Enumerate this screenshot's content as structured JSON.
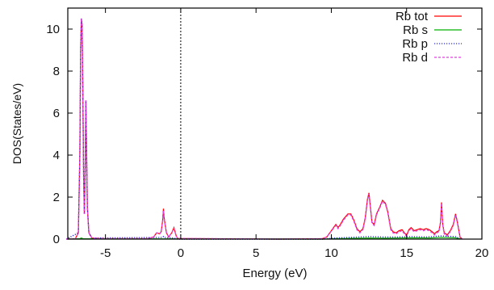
{
  "chart_data": {
    "type": "line",
    "title": "",
    "xlabel": "Energy (eV)",
    "ylabel": "DOS(States/eV)",
    "xlim": [
      -7.5,
      20
    ],
    "ylim": [
      0,
      11
    ],
    "xticks": [
      -5,
      0,
      5,
      10,
      15,
      20
    ],
    "yticks": [
      0,
      2,
      4,
      6,
      8,
      10
    ],
    "grid": false,
    "legend_position": "top-right",
    "fermi_level_line": 0,
    "series": [
      {
        "name": "Rb tot",
        "color": "#ff0000",
        "style": "solid",
        "points": [
          [
            -7.6,
            0
          ],
          [
            -7.0,
            0.02
          ],
          [
            -6.8,
            0.3
          ],
          [
            -6.7,
            4.0
          ],
          [
            -6.65,
            9.0
          ],
          [
            -6.6,
            10.5
          ],
          [
            -6.55,
            10.2
          ],
          [
            -6.5,
            7.0
          ],
          [
            -6.45,
            3.0
          ],
          [
            -6.4,
            1.2
          ],
          [
            -6.35,
            3.0
          ],
          [
            -6.3,
            6.6
          ],
          [
            -6.25,
            4.0
          ],
          [
            -6.2,
            1.5
          ],
          [
            -6.1,
            0.3
          ],
          [
            -5.9,
            0.05
          ],
          [
            -5.0,
            0.02
          ],
          [
            -2.2,
            0.02
          ],
          [
            -1.8,
            0.1
          ],
          [
            -1.6,
            0.3
          ],
          [
            -1.4,
            0.25
          ],
          [
            -1.3,
            0.35
          ],
          [
            -1.2,
            0.9
          ],
          [
            -1.15,
            1.45
          ],
          [
            -1.1,
            1.0
          ],
          [
            -0.95,
            0.3
          ],
          [
            -0.8,
            0.1
          ],
          [
            -0.6,
            0.3
          ],
          [
            -0.45,
            0.55
          ],
          [
            -0.3,
            0.15
          ],
          [
            -0.2,
            0.03
          ],
          [
            6.5,
            0.0
          ],
          [
            9.4,
            0.02
          ],
          [
            9.7,
            0.1
          ],
          [
            10.0,
            0.4
          ],
          [
            10.3,
            0.7
          ],
          [
            10.45,
            0.55
          ],
          [
            10.6,
            0.7
          ],
          [
            10.8,
            0.95
          ],
          [
            11.1,
            1.2
          ],
          [
            11.3,
            1.2
          ],
          [
            11.5,
            0.9
          ],
          [
            11.7,
            0.5
          ],
          [
            11.9,
            0.35
          ],
          [
            12.1,
            0.5
          ],
          [
            12.25,
            1.0
          ],
          [
            12.4,
            1.9
          ],
          [
            12.5,
            2.2
          ],
          [
            12.6,
            1.5
          ],
          [
            12.7,
            0.8
          ],
          [
            12.85,
            0.7
          ],
          [
            13.0,
            1.2
          ],
          [
            13.2,
            1.5
          ],
          [
            13.4,
            1.85
          ],
          [
            13.6,
            1.7
          ],
          [
            13.75,
            1.3
          ],
          [
            13.85,
            0.9
          ],
          [
            13.95,
            0.5
          ],
          [
            14.1,
            0.35
          ],
          [
            14.3,
            0.3
          ],
          [
            14.5,
            0.4
          ],
          [
            14.7,
            0.45
          ],
          [
            14.85,
            0.3
          ],
          [
            15.0,
            0.2
          ],
          [
            15.15,
            0.45
          ],
          [
            15.3,
            0.55
          ],
          [
            15.5,
            0.4
          ],
          [
            15.7,
            0.45
          ],
          [
            15.9,
            0.5
          ],
          [
            16.1,
            0.45
          ],
          [
            16.3,
            0.5
          ],
          [
            16.5,
            0.45
          ],
          [
            16.7,
            0.35
          ],
          [
            16.85,
            0.25
          ],
          [
            17.0,
            0.35
          ],
          [
            17.15,
            0.4
          ],
          [
            17.25,
            0.8
          ],
          [
            17.32,
            1.75
          ],
          [
            17.4,
            0.7
          ],
          [
            17.5,
            0.3
          ],
          [
            17.7,
            0.2
          ],
          [
            17.9,
            0.4
          ],
          [
            18.1,
            0.7
          ],
          [
            18.25,
            1.2
          ],
          [
            18.35,
            0.9
          ],
          [
            18.45,
            0.5
          ],
          [
            18.55,
            0.1
          ],
          [
            18.7,
            0.0
          ]
        ]
      },
      {
        "name": "Rb s",
        "color": "#00b000",
        "style": "solid",
        "points": [
          [
            -7.6,
            0
          ],
          [
            -6.7,
            0.02
          ],
          [
            -6.6,
            0.05
          ],
          [
            -6.5,
            0.02
          ],
          [
            -1.2,
            0.01
          ],
          [
            -0.45,
            0.01
          ],
          [
            9.5,
            0.0
          ],
          [
            10.0,
            0.02
          ],
          [
            11.0,
            0.03
          ],
          [
            12.5,
            0.05
          ],
          [
            13.5,
            0.04
          ],
          [
            14.5,
            0.05
          ],
          [
            15.5,
            0.06
          ],
          [
            16.5,
            0.05
          ],
          [
            17.3,
            0.08
          ],
          [
            18.25,
            0.06
          ],
          [
            18.6,
            0.0
          ]
        ]
      },
      {
        "name": "Rb p",
        "color": "#2c2cd8",
        "style": "dotted",
        "points": [
          [
            -7.6,
            0
          ],
          [
            -6.8,
            0.3
          ],
          [
            -6.7,
            4.0
          ],
          [
            -6.65,
            9.0
          ],
          [
            -6.6,
            10.5
          ],
          [
            -6.55,
            10.2
          ],
          [
            -6.5,
            7.0
          ],
          [
            -6.45,
            3.0
          ],
          [
            -6.4,
            1.2
          ],
          [
            -6.35,
            3.0
          ],
          [
            -6.3,
            6.6
          ],
          [
            -6.25,
            4.0
          ],
          [
            -6.2,
            1.5
          ],
          [
            -6.1,
            0.3
          ],
          [
            -5.9,
            0.05
          ],
          [
            -1.2,
            0.08
          ],
          [
            -1.15,
            0.12
          ],
          [
            -1.1,
            0.08
          ],
          [
            -0.45,
            0.05
          ],
          [
            -0.2,
            0.0
          ],
          [
            9.5,
            0.0
          ],
          [
            10.2,
            0.05
          ],
          [
            11.2,
            0.08
          ],
          [
            12.5,
            0.12
          ],
          [
            13.4,
            0.1
          ],
          [
            14.5,
            0.1
          ],
          [
            15.3,
            0.12
          ],
          [
            16.3,
            0.1
          ],
          [
            17.3,
            0.15
          ],
          [
            18.25,
            0.12
          ],
          [
            18.6,
            0.0
          ]
        ]
      },
      {
        "name": "Rb d",
        "color": "#e040e0",
        "style": "dashed",
        "points": [
          [
            -7.6,
            0
          ],
          [
            -7.0,
            0.02
          ],
          [
            -6.8,
            0.3
          ],
          [
            -6.7,
            4.0
          ],
          [
            -6.65,
            9.0
          ],
          [
            -6.6,
            10.5
          ],
          [
            -6.55,
            10.2
          ],
          [
            -6.5,
            7.0
          ],
          [
            -6.45,
            3.0
          ],
          [
            -6.4,
            1.2
          ],
          [
            -6.35,
            3.0
          ],
          [
            -6.3,
            6.6
          ],
          [
            -6.25,
            4.0
          ],
          [
            -6.2,
            1.5
          ],
          [
            -6.1,
            0.3
          ],
          [
            -5.9,
            0.05
          ],
          [
            -5.0,
            0.02
          ],
          [
            -2.2,
            0.02
          ],
          [
            -1.8,
            0.1
          ],
          [
            -1.6,
            0.3
          ],
          [
            -1.4,
            0.25
          ],
          [
            -1.3,
            0.35
          ],
          [
            -1.2,
            0.85
          ],
          [
            -1.15,
            1.35
          ],
          [
            -1.1,
            0.95
          ],
          [
            -0.95,
            0.3
          ],
          [
            -0.8,
            0.1
          ],
          [
            -0.6,
            0.3
          ],
          [
            -0.45,
            0.5
          ],
          [
            -0.3,
            0.15
          ],
          [
            -0.2,
            0.03
          ],
          [
            6.5,
            0.0
          ],
          [
            9.4,
            0.02
          ],
          [
            9.7,
            0.1
          ],
          [
            10.0,
            0.38
          ],
          [
            10.3,
            0.65
          ],
          [
            10.45,
            0.5
          ],
          [
            10.6,
            0.65
          ],
          [
            10.8,
            0.9
          ],
          [
            11.1,
            1.15
          ],
          [
            11.3,
            1.15
          ],
          [
            11.5,
            0.85
          ],
          [
            11.7,
            0.45
          ],
          [
            11.9,
            0.3
          ],
          [
            12.1,
            0.45
          ],
          [
            12.25,
            0.95
          ],
          [
            12.4,
            1.85
          ],
          [
            12.5,
            2.15
          ],
          [
            12.6,
            1.45
          ],
          [
            12.7,
            0.75
          ],
          [
            12.85,
            0.65
          ],
          [
            13.0,
            1.15
          ],
          [
            13.2,
            1.45
          ],
          [
            13.4,
            1.8
          ],
          [
            13.6,
            1.65
          ],
          [
            13.75,
            1.25
          ],
          [
            13.85,
            0.85
          ],
          [
            13.95,
            0.45
          ],
          [
            14.1,
            0.3
          ],
          [
            14.3,
            0.25
          ],
          [
            14.5,
            0.35
          ],
          [
            14.7,
            0.4
          ],
          [
            14.85,
            0.25
          ],
          [
            15.0,
            0.15
          ],
          [
            15.15,
            0.4
          ],
          [
            15.3,
            0.5
          ],
          [
            15.5,
            0.35
          ],
          [
            15.7,
            0.4
          ],
          [
            15.9,
            0.45
          ],
          [
            16.1,
            0.4
          ],
          [
            16.3,
            0.45
          ],
          [
            16.5,
            0.4
          ],
          [
            16.7,
            0.3
          ],
          [
            16.85,
            0.2
          ],
          [
            17.0,
            0.3
          ],
          [
            17.15,
            0.35
          ],
          [
            17.25,
            0.75
          ],
          [
            17.32,
            1.7
          ],
          [
            17.4,
            0.65
          ],
          [
            17.5,
            0.25
          ],
          [
            17.7,
            0.15
          ],
          [
            17.9,
            0.35
          ],
          [
            18.1,
            0.65
          ],
          [
            18.25,
            1.15
          ],
          [
            18.35,
            0.85
          ],
          [
            18.45,
            0.45
          ],
          [
            18.55,
            0.08
          ],
          [
            18.7,
            0.0
          ]
        ]
      }
    ]
  }
}
